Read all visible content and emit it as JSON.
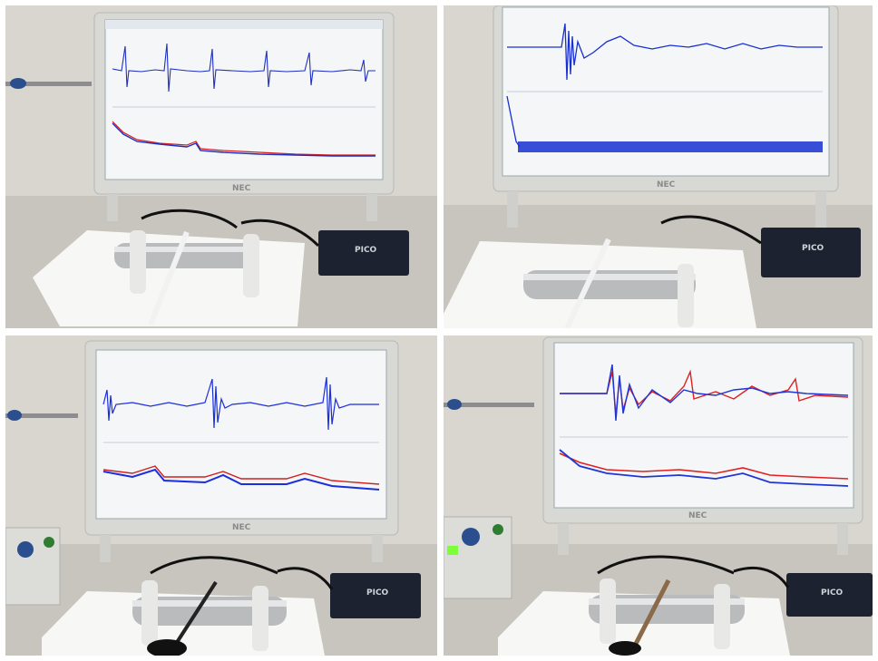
{
  "monitor_brand": "NEC",
  "device_label": "PICO",
  "photos": [
    {
      "id": "top-left",
      "trace_colors": [
        "#2030c0",
        "#d02020"
      ],
      "strikes": 6
    },
    {
      "id": "top-right",
      "trace_colors": [
        "#1830d0"
      ],
      "strikes": 1
    },
    {
      "id": "bottom-left",
      "trace_colors": [
        "#1a2ee0",
        "#d02020"
      ],
      "strikes": 3
    },
    {
      "id": "bottom-right",
      "trace_colors": [
        "#1f35d8",
        "#e02020"
      ],
      "strikes": 1
    }
  ],
  "colors": {
    "wall": "#d9d6cf",
    "desk": "#c8c5be",
    "monitor_bezel": "#d8d8d4",
    "screen": "#f4f6f8",
    "towel": "#f7f7f5",
    "pipe": "#b9bbbd",
    "scope_box": "#1d2230"
  }
}
